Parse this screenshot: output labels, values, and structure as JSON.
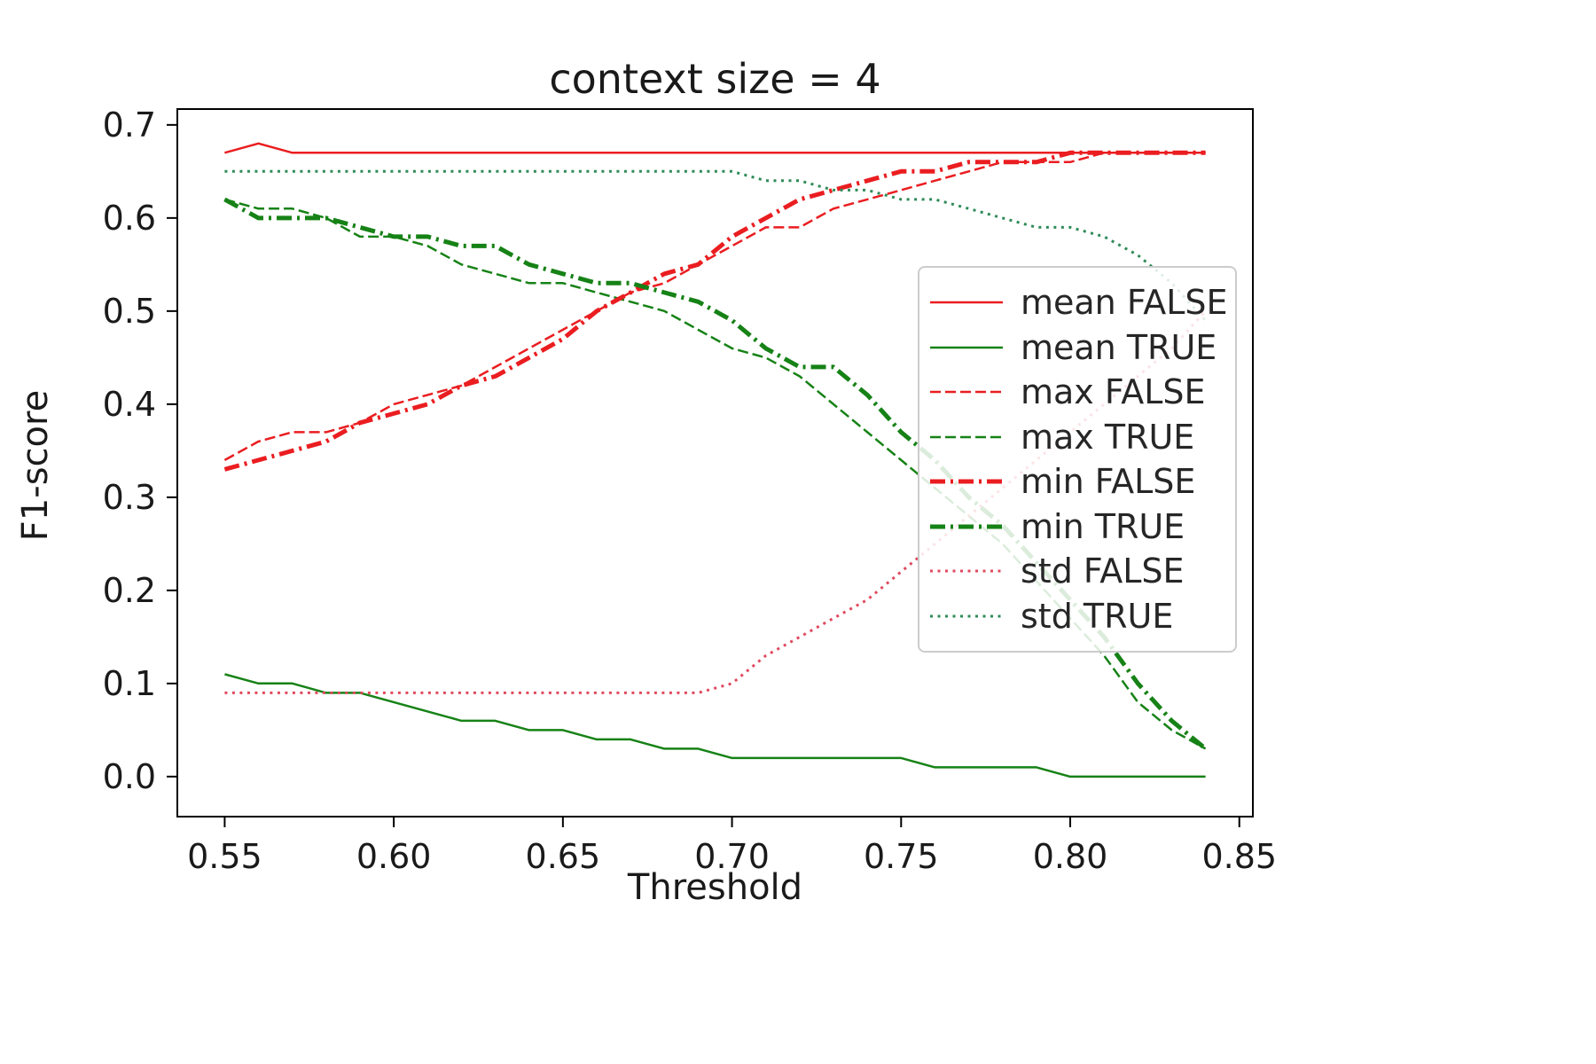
{
  "chart_data": {
    "type": "line",
    "title": "context size = 4",
    "xlabel": "Threshold",
    "ylabel": "F1-score",
    "xlim": [
      0.536,
      0.854
    ],
    "ylim": [
      -0.043,
      0.717
    ],
    "xticks": [
      0.55,
      0.6,
      0.65,
      0.7,
      0.75,
      0.8,
      0.85
    ],
    "xtick_labels": [
      "0.55",
      "0.60",
      "0.65",
      "0.70",
      "0.75",
      "0.80",
      "0.85"
    ],
    "yticks": [
      0.0,
      0.1,
      0.2,
      0.3,
      0.4,
      0.5,
      0.6,
      0.7
    ],
    "ytick_labels": [
      "0.0",
      "0.1",
      "0.2",
      "0.3",
      "0.4",
      "0.5",
      "0.6",
      "0.7"
    ],
    "grid": false,
    "legend_position": "center-right",
    "x": [
      0.55,
      0.56,
      0.57,
      0.58,
      0.59,
      0.6,
      0.61,
      0.62,
      0.63,
      0.64,
      0.65,
      0.66,
      0.67,
      0.68,
      0.69,
      0.7,
      0.71,
      0.72,
      0.73,
      0.74,
      0.75,
      0.76,
      0.77,
      0.78,
      0.79,
      0.8,
      0.81,
      0.82,
      0.83,
      0.84
    ],
    "series": [
      {
        "name": "mean FALSE",
        "color": "#ea1d20",
        "style": "solid",
        "width": 2.5,
        "values": [
          0.67,
          0.68,
          0.67,
          0.67,
          0.67,
          0.67,
          0.67,
          0.67,
          0.67,
          0.67,
          0.67,
          0.67,
          0.67,
          0.67,
          0.67,
          0.67,
          0.67,
          0.67,
          0.67,
          0.67,
          0.67,
          0.67,
          0.67,
          0.67,
          0.67,
          0.67,
          0.67,
          0.67,
          0.67,
          0.67
        ]
      },
      {
        "name": "mean TRUE",
        "color": "#168216",
        "style": "solid",
        "width": 2.5,
        "values": [
          0.11,
          0.1,
          0.1,
          0.09,
          0.09,
          0.08,
          0.07,
          0.06,
          0.06,
          0.05,
          0.05,
          0.04,
          0.04,
          0.03,
          0.03,
          0.02,
          0.02,
          0.02,
          0.02,
          0.02,
          0.02,
          0.01,
          0.01,
          0.01,
          0.01,
          0.0,
          0.0,
          0.0,
          0.0,
          0.0
        ]
      },
      {
        "name": "max FALSE",
        "color": "#ea1d20",
        "style": "dashed",
        "width": 2.5,
        "values": [
          0.34,
          0.36,
          0.37,
          0.37,
          0.38,
          0.4,
          0.41,
          0.42,
          0.44,
          0.46,
          0.48,
          0.5,
          0.52,
          0.53,
          0.55,
          0.57,
          0.59,
          0.59,
          0.61,
          0.62,
          0.63,
          0.64,
          0.65,
          0.66,
          0.66,
          0.66,
          0.67,
          0.67,
          0.67,
          0.67
        ]
      },
      {
        "name": "max TRUE",
        "color": "#168216",
        "style": "dashed",
        "width": 2.5,
        "values": [
          0.62,
          0.61,
          0.61,
          0.6,
          0.58,
          0.58,
          0.57,
          0.55,
          0.54,
          0.53,
          0.53,
          0.52,
          0.51,
          0.5,
          0.48,
          0.46,
          0.45,
          0.43,
          0.4,
          0.37,
          0.34,
          0.31,
          0.28,
          0.25,
          0.21,
          0.17,
          0.13,
          0.08,
          0.05,
          0.03
        ]
      },
      {
        "name": "min FALSE",
        "color": "#ea1d20",
        "style": "dashdot",
        "width": 5,
        "values": [
          0.33,
          0.34,
          0.35,
          0.36,
          0.38,
          0.39,
          0.4,
          0.42,
          0.43,
          0.45,
          0.47,
          0.5,
          0.52,
          0.54,
          0.55,
          0.58,
          0.6,
          0.62,
          0.63,
          0.64,
          0.65,
          0.65,
          0.66,
          0.66,
          0.66,
          0.67,
          0.67,
          0.67,
          0.67,
          0.67
        ]
      },
      {
        "name": "min TRUE",
        "color": "#168216",
        "style": "dashdot",
        "width": 5,
        "values": [
          0.62,
          0.6,
          0.6,
          0.6,
          0.59,
          0.58,
          0.58,
          0.57,
          0.57,
          0.55,
          0.54,
          0.53,
          0.53,
          0.52,
          0.51,
          0.49,
          0.46,
          0.44,
          0.44,
          0.41,
          0.37,
          0.34,
          0.3,
          0.27,
          0.23,
          0.19,
          0.15,
          0.1,
          0.06,
          0.03
        ]
      },
      {
        "name": "std FALSE",
        "color": "#e04a5f",
        "style": "dotted",
        "width": 3,
        "values": [
          0.09,
          0.09,
          0.09,
          0.09,
          0.09,
          0.09,
          0.09,
          0.09,
          0.09,
          0.09,
          0.09,
          0.09,
          0.09,
          0.09,
          0.09,
          0.1,
          0.13,
          0.15,
          0.17,
          0.19,
          0.22,
          0.25,
          0.28,
          0.31,
          0.34,
          0.37,
          0.4,
          0.43,
          0.46,
          0.5
        ]
      },
      {
        "name": "std TRUE",
        "color": "#2e8b57",
        "style": "dotted",
        "width": 3,
        "values": [
          0.65,
          0.65,
          0.65,
          0.65,
          0.65,
          0.65,
          0.65,
          0.65,
          0.65,
          0.65,
          0.65,
          0.65,
          0.65,
          0.65,
          0.65,
          0.65,
          0.64,
          0.64,
          0.63,
          0.63,
          0.62,
          0.62,
          0.61,
          0.6,
          0.59,
          0.59,
          0.58,
          0.56,
          0.53,
          0.49
        ]
      }
    ]
  }
}
